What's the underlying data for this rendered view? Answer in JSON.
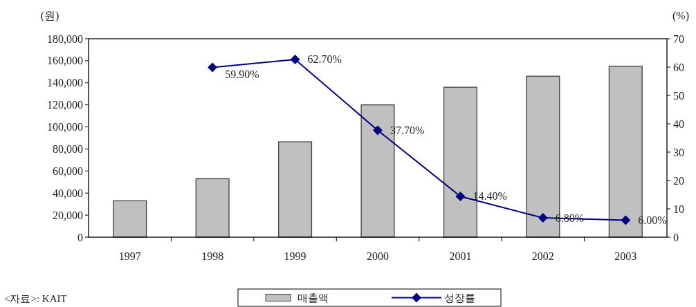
{
  "chart_data": {
    "type": "bar",
    "categories": [
      "1997",
      "1998",
      "1999",
      "2000",
      "2001",
      "2002",
      "2003"
    ],
    "ylabel": "(원)",
    "y2label": "(%)",
    "ylim": [
      0,
      180000
    ],
    "yticks": [
      {
        "value": 0,
        "label": "0"
      },
      {
        "value": 20000,
        "label": "20,000"
      },
      {
        "value": 40000,
        "label": "40,000"
      },
      {
        "value": 60000,
        "label": "60,000"
      },
      {
        "value": 80000,
        "label": "80,000"
      },
      {
        "value": 100000,
        "label": "100,000"
      },
      {
        "value": 120000,
        "label": "120,000"
      },
      {
        "value": 140000,
        "label": "140,000"
      },
      {
        "value": 160000,
        "label": "160,000"
      },
      {
        "value": 180000,
        "label": "180,000"
      }
    ],
    "y2lim": [
      0,
      70
    ],
    "y2ticks": [
      0,
      10,
      20,
      30,
      40,
      50,
      60,
      70
    ],
    "series": [
      {
        "name": "매출액",
        "color": "#c0c0c0",
        "values": [
          33000,
          53000,
          86500,
          120000,
          136000,
          146000,
          155000
        ]
      },
      {
        "name": "성장률",
        "type": "line",
        "axis": "y2",
        "color": "#000080",
        "values": [
          null,
          59.9,
          62.7,
          37.7,
          14.4,
          6.8,
          6.0
        ],
        "value_labels": [
          null,
          "59.90%",
          "62.70%",
          "37.70%",
          "14.40%",
          "6.80%",
          "6.00%"
        ]
      }
    ],
    "marker": "diamond",
    "legend": "bottom",
    "grid": false,
    "annotations": [
      "<자료>: KAIT"
    ]
  }
}
